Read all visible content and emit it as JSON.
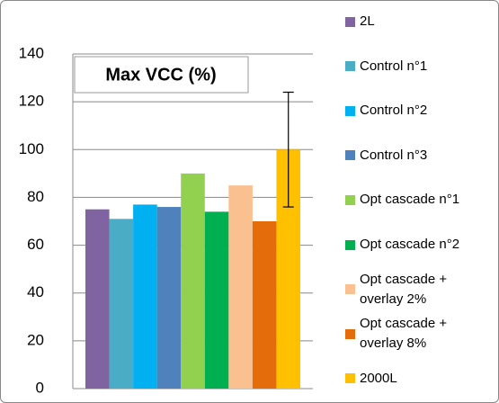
{
  "chart_data": {
    "type": "bar",
    "title": "Max VCC (%)",
    "series": [
      {
        "name": "2L",
        "color": "#8064a2",
        "values": [
          75
        ]
      },
      {
        "name": "Control n°1",
        "color": "#4bacc6",
        "values": [
          71
        ]
      },
      {
        "name": "Control n°2",
        "color": "#00b0f0",
        "values": [
          77
        ]
      },
      {
        "name": "Control n°3",
        "color": "#4f81bd",
        "values": [
          76
        ]
      },
      {
        "name": "Opt cascade n°1",
        "color": "#92d050",
        "values": [
          90
        ]
      },
      {
        "name": "Opt cascade n°2",
        "color": "#00b050",
        "values": [
          74
        ]
      },
      {
        "name": "Opt cascade +\noverlay 2%",
        "color": "#fac090",
        "values": [
          85
        ]
      },
      {
        "name": "Opt cascade +\noverlay 8%",
        "color": "#e46c0a",
        "values": [
          70
        ]
      },
      {
        "name": "2000L",
        "color": "#ffc000",
        "values": [
          100
        ],
        "errors": [
          24
        ]
      }
    ],
    "ylim": [
      0,
      140
    ],
    "yticks": [
      0,
      20,
      40,
      60,
      80,
      100,
      120,
      140
    ],
    "grid": true,
    "legend": "right"
  }
}
